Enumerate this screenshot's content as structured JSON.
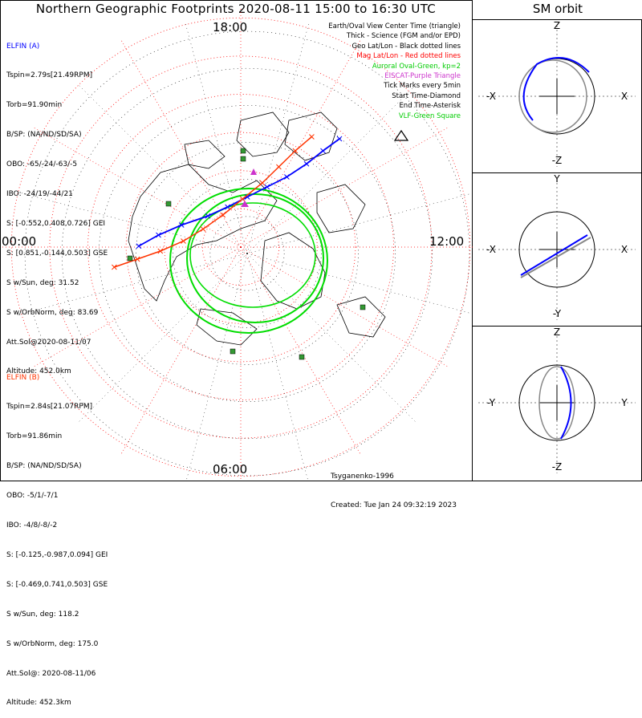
{
  "title": "Northern Geographic Footprints 2020-08-11 15:00 to 16:30 UTC",
  "sm_title": "SM orbit",
  "clock_labels": {
    "top": "18:00",
    "right": "12:00",
    "bottom": "06:00",
    "left": "00:00"
  },
  "elfin_a": {
    "header": "ELFIN (A)",
    "lines": [
      "Tspin=2.79s[21.49RPM]",
      "Torb=91.90min",
      "B/SP: (NA/ND/SD/SA)",
      "OBO: -65/-24/-63/-5",
      "IBO: -24/19/-44/21",
      "S: [-0.552,0.408,0.726] GEI",
      "S: [0.851,-0.144,0.503] GSE",
      "S w/Sun, deg: 31.52",
      "S w/OrbNorm, deg: 83.69",
      "Att.Sol@2020-08-11/07",
      "Altitude: 452.0km"
    ]
  },
  "elfin_b": {
    "header": "ELFIN (B)",
    "lines": [
      "Tspin=2.84s[21.07RPM]",
      "Torb=91.86min",
      "B/SP: (NA/ND/SD/SA)",
      "OBO: -5/1/-7/1",
      "IBO: -4/8/-8/-2",
      "S: [-0.125,-0.987,0.094] GEI",
      "S: [-0.469,0.741,0.503] GSE",
      "S w/Sun, deg: 118.2",
      "S w/OrbNorm, deg: 175.0",
      "Att.Sol@: 2020-08-11/06",
      "Altitude: 452.3km"
    ]
  },
  "legend": [
    {
      "text": "Earth/Oval View Center Time (triangle)",
      "color": "#000000"
    },
    {
      "text": "Thick - Science (FGM and/or EPD)",
      "color": "#000000"
    },
    {
      "text": "Geo Lat/Lon - Black dotted lines",
      "color": "#000000"
    },
    {
      "text": "Mag Lat/Lon - Red dotted lines",
      "color": "#ff0000"
    },
    {
      "text": "Auroral Oval-Green, kp=2",
      "color": "#00cc00"
    },
    {
      "text": "EISCAT-Purple Triangle",
      "color": "#cc33cc"
    },
    {
      "text": "Tick Marks every 5min",
      "color": "#000000"
    },
    {
      "text": "Start Time-Diamond",
      "color": "#000000"
    },
    {
      "text": "End Time-Asterisk",
      "color": "#000000"
    },
    {
      "text": "VLF-Green Square",
      "color": "#00cc00"
    }
  ],
  "footer": {
    "model": "Tsyganenko-1996",
    "created": "Created: Tue Jan 24 09:32:19 2023"
  },
  "sm_panels": [
    {
      "name": "xz",
      "top": "Z",
      "bottom": "-Z",
      "left": "-X",
      "right": "X"
    },
    {
      "name": "xy",
      "top": "Y",
      "bottom": "-Y",
      "left": "-X",
      "right": "X"
    },
    {
      "name": "yz",
      "top": "Z",
      "bottom": "-Z",
      "left": "-Y",
      "right": "Y"
    }
  ],
  "colors": {
    "elfin_a": "#0000ff",
    "elfin_b": "#ff3300",
    "oval": "#00dd00",
    "grid_mag": "#ff0000",
    "sm_orbit_gray": "#aaaaaa"
  },
  "chart_data": {
    "type": "polar-map",
    "title": "Northern Geographic Footprints 2020-08-11 15:00 to 16:30 UTC",
    "center_lat_deg": 90,
    "outer_lat_deg": 30,
    "mlt_labels": [
      "18:00",
      "12:00",
      "06:00",
      "00:00"
    ],
    "series": [
      {
        "name": "ELFIN (A)",
        "points": [
          [
            -62,
            1
          ],
          [
            -50,
            12
          ],
          [
            -36,
            22
          ],
          [
            -20,
            31
          ],
          [
            -8,
            40
          ],
          [
            4,
            50
          ],
          [
            16,
            60
          ],
          [
            28,
            70
          ],
          [
            40,
            83
          ],
          [
            50,
            96
          ],
          [
            60,
            108
          ]
        ]
      },
      {
        "name": "ELFIN (B)",
        "points": [
          [
            -72,
            -12
          ],
          [
            -58,
            -4
          ],
          [
            -44,
            4
          ],
          [
            -30,
            14
          ],
          [
            -18,
            26
          ],
          [
            -6,
            40
          ],
          [
            6,
            56
          ],
          [
            18,
            72
          ],
          [
            28,
            88
          ],
          [
            38,
            104
          ],
          [
            48,
            118
          ]
        ]
      }
    ],
    "auroral_oval_kp": 2
  }
}
